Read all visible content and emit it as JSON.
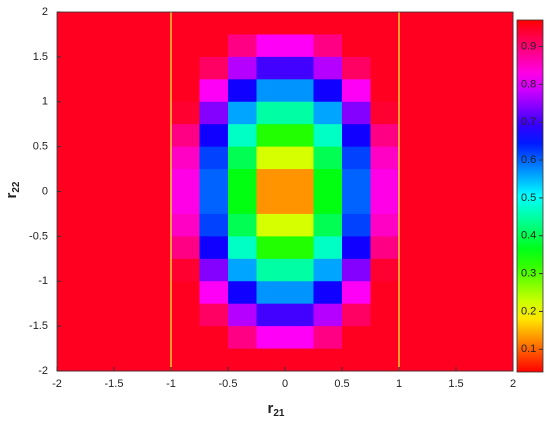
{
  "chart_data": {
    "type": "heatmap",
    "colormap": "hsv",
    "xlabel": "r",
    "xlabel_sub": "21",
    "ylabel": "r",
    "ylabel_sub": "22",
    "x": [
      -1.875,
      -1.625,
      -1.375,
      -1.125,
      -0.875,
      -0.625,
      -0.375,
      -0.125,
      0.125,
      0.375,
      0.625,
      0.875,
      1.125,
      1.375,
      1.625,
      1.875
    ],
    "y": [
      1.875,
      1.625,
      1.375,
      1.125,
      0.875,
      0.625,
      0.375,
      0.125,
      -0.125,
      -0.375,
      -0.625,
      -0.875,
      -1.125,
      -1.375,
      -1.625,
      -1.875
    ],
    "values": [
      [
        0.95,
        0.95,
        0.95,
        0.95,
        0.95,
        0.95,
        0.95,
        0.95,
        0.95,
        0.95,
        0.95,
        0.95,
        0.95,
        0.95,
        0.95,
        0.95
      ],
      [
        0.95,
        0.95,
        0.95,
        0.95,
        0.95,
        0.95,
        0.89,
        0.82,
        0.82,
        0.89,
        0.95,
        0.95,
        0.95,
        0.95,
        0.95,
        0.95
      ],
      [
        0.95,
        0.95,
        0.95,
        0.95,
        0.95,
        0.91,
        0.77,
        0.7,
        0.7,
        0.77,
        0.91,
        0.95,
        0.95,
        0.95,
        0.95,
        0.95
      ],
      [
        0.95,
        0.95,
        0.95,
        0.95,
        0.95,
        0.82,
        0.67,
        0.57,
        0.57,
        0.67,
        0.82,
        0.95,
        0.95,
        0.95,
        0.95,
        0.95
      ],
      [
        0.95,
        0.95,
        0.95,
        0.95,
        0.94,
        0.74,
        0.56,
        0.45,
        0.45,
        0.56,
        0.74,
        0.94,
        0.95,
        0.95,
        0.95,
        0.95
      ],
      [
        0.95,
        0.95,
        0.95,
        0.95,
        0.89,
        0.67,
        0.47,
        0.33,
        0.33,
        0.47,
        0.67,
        0.89,
        0.95,
        0.95,
        0.95,
        0.95
      ],
      [
        0.95,
        0.95,
        0.95,
        0.95,
        0.85,
        0.62,
        0.4,
        0.22,
        0.22,
        0.4,
        0.62,
        0.85,
        0.95,
        0.95,
        0.95,
        0.95
      ],
      [
        0.95,
        0.95,
        0.95,
        0.95,
        0.83,
        0.6,
        0.36,
        0.13,
        0.13,
        0.36,
        0.6,
        0.83,
        0.95,
        0.95,
        0.95,
        0.95
      ],
      [
        0.95,
        0.95,
        0.95,
        0.95,
        0.83,
        0.6,
        0.36,
        0.13,
        0.13,
        0.36,
        0.6,
        0.83,
        0.95,
        0.95,
        0.95,
        0.95
      ],
      [
        0.95,
        0.95,
        0.95,
        0.95,
        0.85,
        0.62,
        0.4,
        0.22,
        0.22,
        0.4,
        0.62,
        0.85,
        0.95,
        0.95,
        0.95,
        0.95
      ],
      [
        0.95,
        0.95,
        0.95,
        0.95,
        0.89,
        0.67,
        0.47,
        0.33,
        0.33,
        0.47,
        0.67,
        0.89,
        0.95,
        0.95,
        0.95,
        0.95
      ],
      [
        0.95,
        0.95,
        0.95,
        0.95,
        0.94,
        0.74,
        0.56,
        0.45,
        0.45,
        0.56,
        0.74,
        0.94,
        0.95,
        0.95,
        0.95,
        0.95
      ],
      [
        0.95,
        0.95,
        0.95,
        0.95,
        0.95,
        0.82,
        0.67,
        0.57,
        0.57,
        0.67,
        0.82,
        0.95,
        0.95,
        0.95,
        0.95,
        0.95
      ],
      [
        0.95,
        0.95,
        0.95,
        0.95,
        0.95,
        0.91,
        0.77,
        0.7,
        0.7,
        0.77,
        0.91,
        0.95,
        0.95,
        0.95,
        0.95,
        0.95
      ],
      [
        0.95,
        0.95,
        0.95,
        0.95,
        0.95,
        0.95,
        0.89,
        0.82,
        0.82,
        0.89,
        0.95,
        0.95,
        0.95,
        0.95,
        0.95,
        0.95
      ],
      [
        0.95,
        0.95,
        0.95,
        0.95,
        0.95,
        0.95,
        0.95,
        0.95,
        0.95,
        0.95,
        0.95,
        0.95,
        0.95,
        0.95,
        0.95,
        0.95
      ]
    ],
    "xlim": [
      -2,
      2
    ],
    "ylim": [
      -2,
      2
    ],
    "xticks": [
      -2,
      -1.5,
      -1,
      -0.5,
      0,
      0.5,
      1,
      1.5,
      2
    ],
    "yticks": [
      -2,
      -1.5,
      -1,
      -0.5,
      0,
      0.5,
      1,
      1.5,
      2
    ],
    "clim": [
      0.04,
      0.97
    ],
    "cticks": [
      0.1,
      0.2,
      0.3,
      0.4,
      0.5,
      0.6,
      0.7,
      0.8,
      0.9
    ],
    "vlines": [
      -1,
      1
    ],
    "vline_color": "#ffff33"
  }
}
